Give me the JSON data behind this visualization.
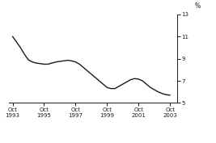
{
  "title": "",
  "ylabel": "%",
  "ylabel_side": "right",
  "xlim_years": [
    1993.5,
    2004.2
  ],
  "ylim": [
    5,
    13
  ],
  "yticks": [
    5,
    7,
    9,
    11,
    13
  ],
  "xtick_labels": [
    "Oct\n1993",
    "Oct\n1995",
    "Oct\n1997",
    "Oct\n1999",
    "Oct\n2001",
    "Oct\n2003"
  ],
  "xtick_positions": [
    1993.75,
    1995.75,
    1997.75,
    1999.75,
    2001.75,
    2003.75
  ],
  "line_color": "#1a1a1a",
  "line_width": 1.0,
  "background_color": "#ffffff",
  "data_x": [
    1993.75,
    1994.0,
    1994.25,
    1994.5,
    1994.75,
    1995.0,
    1995.25,
    1995.5,
    1995.75,
    1996.0,
    1996.25,
    1996.5,
    1996.75,
    1997.0,
    1997.25,
    1997.5,
    1997.75,
    1998.0,
    1998.25,
    1998.5,
    1998.75,
    1999.0,
    1999.25,
    1999.5,
    1999.75,
    2000.0,
    2000.25,
    2000.5,
    2000.75,
    2001.0,
    2001.25,
    2001.5,
    2001.75,
    2002.0,
    2002.25,
    2002.5,
    2002.75,
    2003.0,
    2003.25,
    2003.5,
    2003.75
  ],
  "data_y": [
    11.0,
    10.5,
    10.0,
    9.4,
    8.9,
    8.7,
    8.6,
    8.55,
    8.5,
    8.5,
    8.6,
    8.7,
    8.75,
    8.8,
    8.85,
    8.8,
    8.7,
    8.5,
    8.2,
    7.9,
    7.6,
    7.3,
    7.0,
    6.7,
    6.4,
    6.3,
    6.3,
    6.5,
    6.7,
    6.9,
    7.1,
    7.2,
    7.15,
    7.0,
    6.7,
    6.4,
    6.2,
    6.0,
    5.85,
    5.75,
    5.7
  ]
}
